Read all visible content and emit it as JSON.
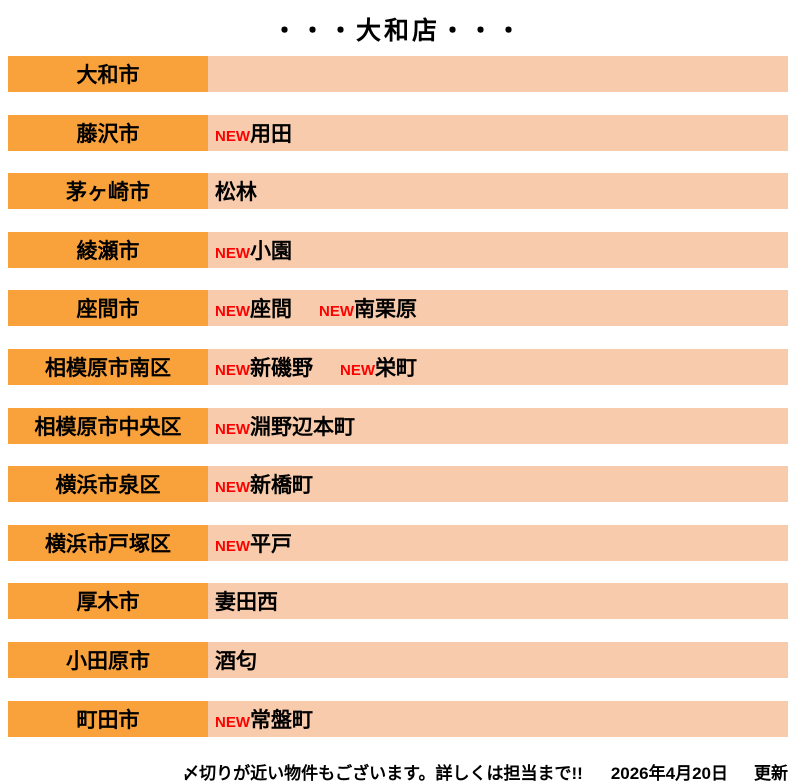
{
  "title": "・・・大和店・・・",
  "new_label": "NEW",
  "rows": [
    {
      "city": "大和市",
      "areas": []
    },
    {
      "city": "藤沢市",
      "areas": [
        {
          "new": true,
          "name": "用田"
        }
      ]
    },
    {
      "city": "茅ヶ崎市",
      "areas": [
        {
          "new": false,
          "name": "松林"
        }
      ]
    },
    {
      "city": "綾瀬市",
      "areas": [
        {
          "new": true,
          "name": "小園"
        }
      ]
    },
    {
      "city": "座間市",
      "areas": [
        {
          "new": true,
          "name": "座間"
        },
        {
          "new": true,
          "name": "南栗原"
        }
      ]
    },
    {
      "city": "相模原市南区",
      "areas": [
        {
          "new": true,
          "name": "新磯野"
        },
        {
          "new": true,
          "name": "栄町"
        }
      ]
    },
    {
      "city": "相模原市中央区",
      "areas": [
        {
          "new": true,
          "name": "淵野辺本町"
        }
      ]
    },
    {
      "city": "横浜市泉区",
      "areas": [
        {
          "new": true,
          "name": "新橋町"
        }
      ]
    },
    {
      "city": "横浜市戸塚区",
      "areas": [
        {
          "new": true,
          "name": "平戸"
        }
      ]
    },
    {
      "city": "厚木市",
      "areas": [
        {
          "new": false,
          "name": "妻田西"
        }
      ]
    },
    {
      "city": "小田原市",
      "areas": [
        {
          "new": false,
          "name": "酒匂"
        }
      ]
    },
    {
      "city": "町田市",
      "areas": [
        {
          "new": true,
          "name": "常盤町"
        }
      ]
    }
  ],
  "footer": {
    "notice": "〆切りが近い物件もございます。詳しくは担当まで!!",
    "date": "2026年4月20日",
    "updated_label": "更新"
  },
  "colors": {
    "city_cell": "#F9A13B",
    "area_cell": "#F8CBAD",
    "new_text": "#FF0000",
    "text": "#000000",
    "background": "#FFFFFF"
  }
}
